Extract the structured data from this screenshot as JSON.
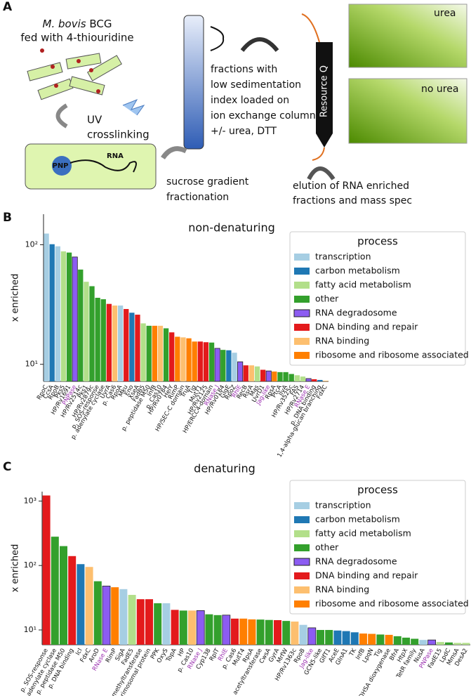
{
  "panels": [
    "A",
    "B",
    "C"
  ],
  "panel_a": {
    "organism": "M. bovis",
    "strain": "BCG",
    "feeding": "fed with 4-thiouridine",
    "uv": "UV",
    "crosslinking": "crosslinking",
    "pnp": "PNP",
    "rna": "RNA",
    "sucrose_1": "sucrose gradient",
    "sucrose_2": "fractionation",
    "fractions": [
      "fractions with",
      "low sedimentation",
      "index loaded on",
      "ion exchange column",
      "+/- urea, DTT"
    ],
    "column": "Resource Q",
    "urea": "urea",
    "no_urea": "no urea",
    "elution_1": "elution of RNA enriched",
    "elution_2": "fractions and mass spec"
  },
  "chart_data": [
    {
      "type": "bar",
      "title": "non-denaturing",
      "y_label": "x enriched",
      "log_scale": true,
      "ylim": [
        7.2,
        180
      ],
      "yticks": [
        {
          "value": 10,
          "label": "10¹"
        },
        {
          "value": 100,
          "label": "10²"
        }
      ],
      "categories": [
        "RpoC",
        "CcsA",
        "RpoB",
        "Pks5",
        "HP/Rv1691",
        "PNPase",
        "HP/Rv2514c",
        "Pks1",
        "HP/Rv2879c",
        "p. SOS-response",
        "p. adenylate cyclase",
        "UvrA",
        "p. Cas6",
        "RpoA",
        "Mku",
        "Eno",
        "XseA",
        "FadB5",
        "p. peptidase M50",
        "InfB",
        "p. Cas10",
        "HP/Rv0784",
        "HelY",
        "RimP",
        "HP/SEC-C domain",
        "TruA",
        "Tig",
        "MutT1",
        "HP/Rv2125",
        "HP/ERCC4-domain",
        "RNase J",
        "HP/Rv0184",
        "GlgE",
        "RpoZ",
        "RhlE",
        "RecB",
        "RsrA",
        "Mas",
        "UvrD1",
        "Jag-like",
        "RpsA",
        "PtcA",
        "IlvA",
        "HP/Rv3525c",
        "FAS",
        "HP/Rv2714",
        "RNase E",
        "p. DNA binding",
        "1,4-alpha-glucan branching",
        "FdxC"
      ],
      "values": [
        124,
        101,
        97,
        88,
        86,
        79,
        62,
        49,
        45,
        36,
        35,
        32,
        31,
        31,
        29,
        27,
        26,
        22,
        21,
        21,
        21,
        20,
        18.5,
        17,
        16.8,
        16.5,
        15.5,
        15.5,
        15.3,
        15.2,
        13.6,
        13.2,
        13.1,
        12.5,
        10.5,
        9.8,
        9.8,
        9.6,
        9.0,
        8.8,
        8.7,
        8.6,
        8.6,
        8.3,
        8.1,
        7.9,
        7.6,
        7.5,
        7.4,
        7.3
      ],
      "colors": [
        "#a6cee3",
        "#1f78b4",
        "#a6cee3",
        "#b2df8a",
        "#33a02c",
        "#8c5cf2",
        "#33a02c",
        "#b2df8a",
        "#33a02c",
        "#33a02c",
        "#33a02c",
        "#e31a1c",
        "#fdbf6f",
        "#a6cee3",
        "#e31a1c",
        "#1f78b4",
        "#e31a1c",
        "#b2df8a",
        "#33a02c",
        "#ff7f00",
        "#fdbf6f",
        "#33a02c",
        "#e31a1c",
        "#ff7f00",
        "#fdbf6f",
        "#ff7f00",
        "#ff7f00",
        "#e31a1c",
        "#e31a1c",
        "#33a02c",
        "#8c5cf2",
        "#33a02c",
        "#1f78b4",
        "#a6cee3",
        "#8c5cf2",
        "#e31a1c",
        "#fdbf6f",
        "#b2df8a",
        "#e31a1c",
        "#8c5cf2",
        "#ff7f00",
        "#33a02c",
        "#33a02c",
        "#33a02c",
        "#b2df8a",
        "#b2df8a",
        "#8c5cf2",
        "#e31a1c",
        "#1f78b4",
        "#fdbf6f"
      ],
      "highlight": {
        "color": "#9b30b0",
        "categories": [
          5,
          30,
          34,
          39,
          46
        ]
      },
      "legend": {
        "title": "process",
        "entries": [
          {
            "name": "transcription",
            "color": "#a6cee3"
          },
          {
            "name": "carbon metabolism",
            "color": "#1f78b4"
          },
          {
            "name": "fatty acid metabolism",
            "color": "#b2df8a"
          },
          {
            "name": "other",
            "color": "#33a02c"
          },
          {
            "name": "RNA degradosome",
            "color": "#8c5cf2"
          },
          {
            "name": "DNA binding and repair",
            "color": "#e31a1c"
          },
          {
            "name": "RNA binding",
            "color": "#fdbf6f"
          },
          {
            "name": "ribosome and ribosome associated",
            "color": "#ff7f00"
          }
        ]
      }
    },
    {
      "type": "bar",
      "title": "denaturing",
      "y_label": "x enriched",
      "log_scale": true,
      "ylim": [
        5.9,
        1400
      ],
      "yticks": [
        {
          "value": 10,
          "label": "10¹"
        },
        {
          "value": 100,
          "label": "10²"
        },
        {
          "value": 1000,
          "label": "10³"
        }
      ],
      "categories": [
        "p. SOS-response",
        "p. adenylate cyclase",
        "p. peptidase M50",
        "p. DNA binding",
        "Icl",
        "FdxC",
        "AroD",
        "RNase E",
        "RimP",
        "SigA",
        "FadE5",
        "RNA methyltransferase",
        "HP/p. primosomal protein",
        "PPK",
        "OxyS",
        "TopA",
        "HP",
        "p. Cas10",
        "RNase J",
        "Cyp138",
        "RplT",
        "RhlE",
        "p. Cas6",
        "MutT4",
        "RpsA",
        "acetyltransferase",
        "CwsA",
        "GyrA",
        "MrfW",
        "HP/Rv1363c",
        "RpoB",
        "Jag-like",
        "GCN5-like",
        "GlfT1",
        "AceE",
        "GlnA1",
        "TK",
        "InfB",
        "LpqN",
        "Tig",
        "3,4-DHSA dioxygenase",
        "BfrA",
        "HtpX",
        "TetR family",
        "NusA",
        "PNPase",
        "FadE15",
        "LpdC",
        "MmsA",
        "DesA2"
      ],
      "values": [
        1220,
        280,
        200,
        140,
        105,
        95,
        57,
        48,
        46,
        43,
        35,
        30,
        30,
        26,
        26,
        20.5,
        20,
        20,
        20,
        17.5,
        17,
        17,
        15,
        15,
        14.6,
        14.5,
        14.3,
        14.2,
        13.8,
        13.5,
        12,
        10.8,
        10,
        10,
        9.8,
        9.6,
        9.2,
        8.8,
        8.7,
        8.5,
        8.4,
        8.0,
        7.6,
        7.3,
        7.0,
        7.0,
        6.5,
        6.4,
        6.3,
        6.3
      ],
      "colors": [
        "#e31a1c",
        "#33a02c",
        "#33a02c",
        "#e31a1c",
        "#1f78b4",
        "#fdbf6f",
        "#33a02c",
        "#8c5cf2",
        "#ff7f00",
        "#a6cee3",
        "#b2df8a",
        "#e31a1c",
        "#e31a1c",
        "#33a02c",
        "#a6cee3",
        "#e31a1c",
        "#33a02c",
        "#fdbf6f",
        "#8c5cf2",
        "#33a02c",
        "#33a02c",
        "#8c5cf2",
        "#e31a1c",
        "#ff7f00",
        "#ff7f00",
        "#33a02c",
        "#33a02c",
        "#e31a1c",
        "#33a02c",
        "#fdbf6f",
        "#a6cee3",
        "#8c5cf2",
        "#33a02c",
        "#33a02c",
        "#1f78b4",
        "#1f78b4",
        "#1f78b4",
        "#ff7f00",
        "#ff7f00",
        "#33a02c",
        "#ff7f00",
        "#33a02c",
        "#33a02c",
        "#33a02c",
        "#a6cee3",
        "#8c5cf2",
        "#b2df8a",
        "#33a02c",
        "#b2df8a",
        "#b2df8a"
      ],
      "highlight": {
        "color": "#9b30b0",
        "categories": [
          7,
          18,
          21,
          31,
          45
        ]
      },
      "legend": {
        "title": "process",
        "entries": [
          {
            "name": "transcription",
            "color": "#a6cee3"
          },
          {
            "name": "carbon metabolism",
            "color": "#1f78b4"
          },
          {
            "name": "fatty acid metabolism",
            "color": "#b2df8a"
          },
          {
            "name": "other",
            "color": "#33a02c"
          },
          {
            "name": "RNA degradosome",
            "color": "#8c5cf2"
          },
          {
            "name": "DNA binding and repair",
            "color": "#e31a1c"
          },
          {
            "name": "RNA binding",
            "color": "#fdbf6f"
          },
          {
            "name": "ribosome and ribosome associated",
            "color": "#ff7f00"
          }
        ]
      }
    }
  ]
}
